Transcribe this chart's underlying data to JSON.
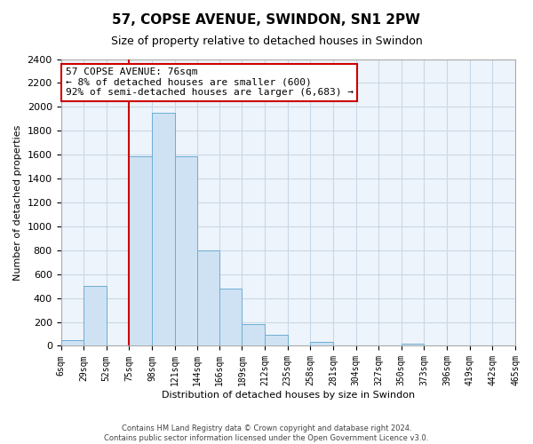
{
  "title": "57, COPSE AVENUE, SWINDON, SN1 2PW",
  "subtitle": "Size of property relative to detached houses in Swindon",
  "xlabel": "Distribution of detached houses by size in Swindon",
  "ylabel": "Number of detached properties",
  "bin_edges": [
    6,
    29,
    52,
    75,
    98,
    121,
    144,
    166,
    189,
    212,
    235,
    258,
    281,
    304,
    327,
    350,
    373,
    396,
    419,
    442,
    465
  ],
  "bin_labels": [
    "6sqm",
    "29sqm",
    "52sqm",
    "75sqm",
    "98sqm",
    "121sqm",
    "144sqm",
    "166sqm",
    "189sqm",
    "212sqm",
    "235sqm",
    "258sqm",
    "281sqm",
    "304sqm",
    "327sqm",
    "350sqm",
    "373sqm",
    "396sqm",
    "419sqm",
    "442sqm",
    "465sqm"
  ],
  "counts": [
    50,
    500,
    0,
    1590,
    1950,
    1590,
    800,
    480,
    185,
    90,
    0,
    30,
    0,
    0,
    0,
    20,
    0,
    0,
    0,
    0
  ],
  "bar_color": "#cfe2f3",
  "bar_edge_color": "#6baed6",
  "vline_x": 75,
  "vline_color": "#cc0000",
  "ylim": [
    0,
    2400
  ],
  "yticks": [
    0,
    200,
    400,
    600,
    800,
    1000,
    1200,
    1400,
    1600,
    1800,
    2000,
    2200,
    2400
  ],
  "annotation_text": "57 COPSE AVENUE: 76sqm\n← 8% of detached houses are smaller (600)\n92% of semi-detached houses are larger (6,683) →",
  "annotation_box_color": "#ffffff",
  "annotation_box_edge": "#cc0000",
  "footer_line1": "Contains HM Land Registry data © Crown copyright and database right 2024.",
  "footer_line2": "Contains public sector information licensed under the Open Government Licence v3.0.",
  "background_color": "#ffffff",
  "axes_bg_color": "#eef4fb",
  "grid_color": "#c8d8e8",
  "title_fontsize": 11,
  "subtitle_fontsize": 9,
  "tick_fontsize": 7,
  "ylabel_fontsize": 8,
  "xlabel_fontsize": 8
}
